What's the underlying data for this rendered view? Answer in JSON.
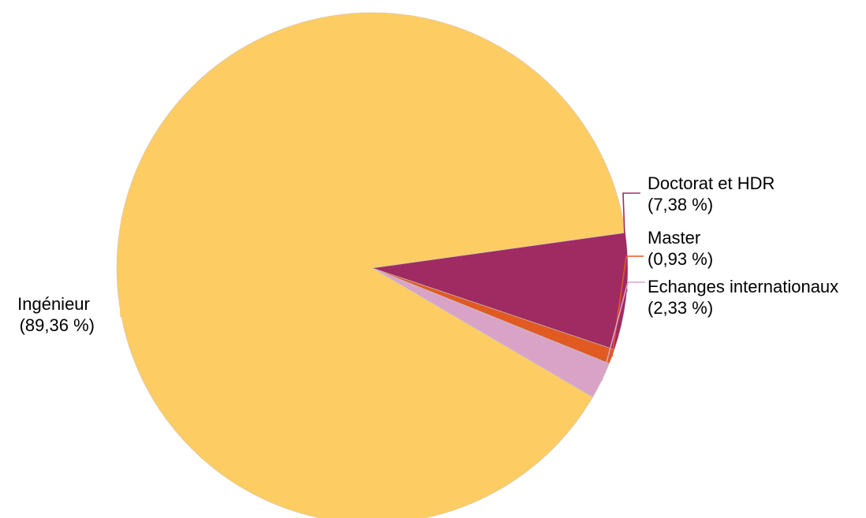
{
  "chart_data": {
    "type": "pie",
    "title": "",
    "slices": [
      {
        "name": "Ingénieur",
        "label": "Ingénieur",
        "value": 89.36,
        "value_label": "(89,36 %)",
        "color": "#FDCC63"
      },
      {
        "name": "Doctorat et HDR",
        "label": "Doctorat et HDR",
        "value": 7.38,
        "value_label": "(7,38 %)",
        "color": "#A02B62"
      },
      {
        "name": "Master",
        "label": "Master",
        "value": 0.93,
        "value_label": "(0,93 %)",
        "color": "#E05A22"
      },
      {
        "name": "Echanges internationaux",
        "label": "Echanges internationaux",
        "value": 2.33,
        "value_label": "(2,33 %)",
        "color": "#D9A3C8"
      }
    ],
    "legend": "none",
    "labels": "outside"
  }
}
